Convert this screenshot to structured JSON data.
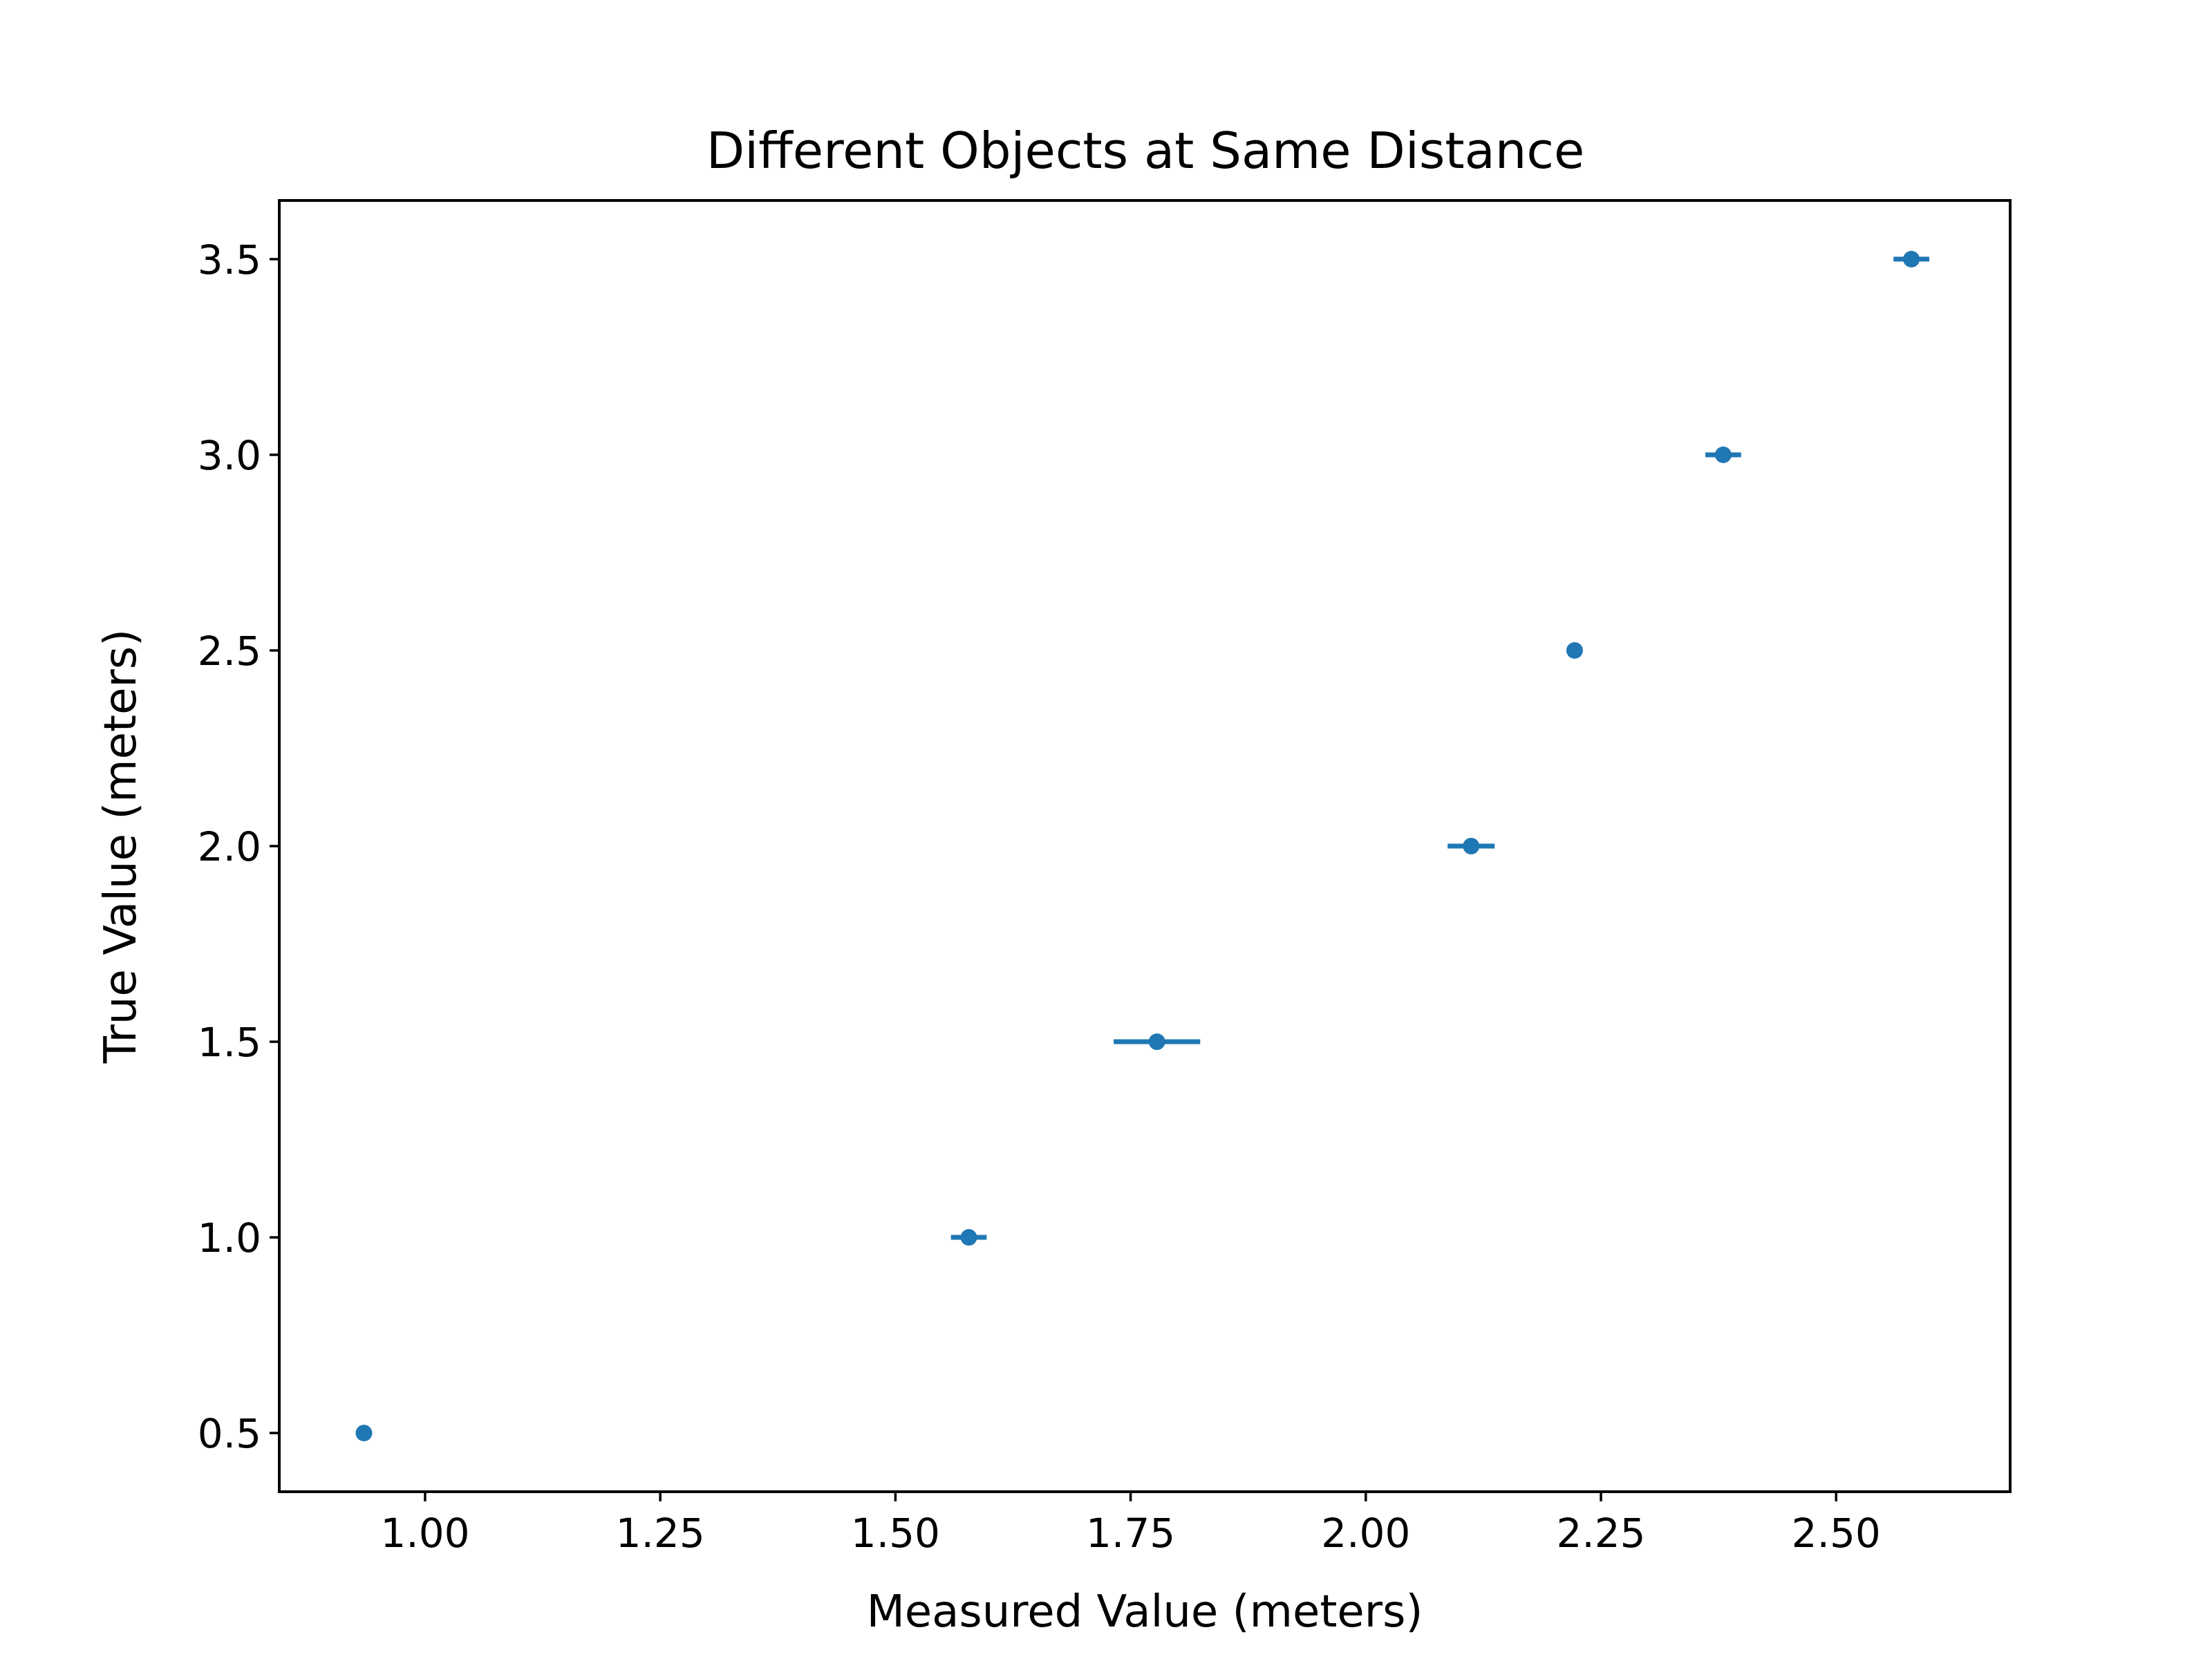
{
  "chart_data": {
    "type": "scatter",
    "title": "Different Objects at Same Distance",
    "xlabel": "Measured Value (meters)",
    "ylabel": "True Value (meters)",
    "xlim": [
      0.845,
      2.685
    ],
    "ylim": [
      0.35,
      3.65
    ],
    "xticks": [
      1.0,
      1.25,
      1.5,
      1.75,
      2.0,
      2.25,
      2.5
    ],
    "xtick_labels": [
      "1.00",
      "1.25",
      "1.50",
      "1.75",
      "2.00",
      "2.25",
      "2.50"
    ],
    "yticks": [
      0.5,
      1.0,
      1.5,
      2.0,
      2.5,
      3.0,
      3.5
    ],
    "ytick_labels": [
      "0.5",
      "1.0",
      "1.5",
      "2.0",
      "2.5",
      "3.0",
      "3.5"
    ],
    "grid": false,
    "legend": "none",
    "color": "#1f77b4",
    "points": [
      {
        "x": 0.935,
        "y": 0.5,
        "xerr": 0.0
      },
      {
        "x": 1.578,
        "y": 1.0,
        "xerr": 0.019
      },
      {
        "x": 1.778,
        "y": 1.5,
        "xerr": 0.046
      },
      {
        "x": 2.112,
        "y": 2.0,
        "xerr": 0.025
      },
      {
        "x": 2.222,
        "y": 2.5,
        "xerr": 0.0
      },
      {
        "x": 2.38,
        "y": 3.0,
        "xerr": 0.019
      },
      {
        "x": 2.58,
        "y": 3.5,
        "xerr": 0.019
      }
    ]
  }
}
